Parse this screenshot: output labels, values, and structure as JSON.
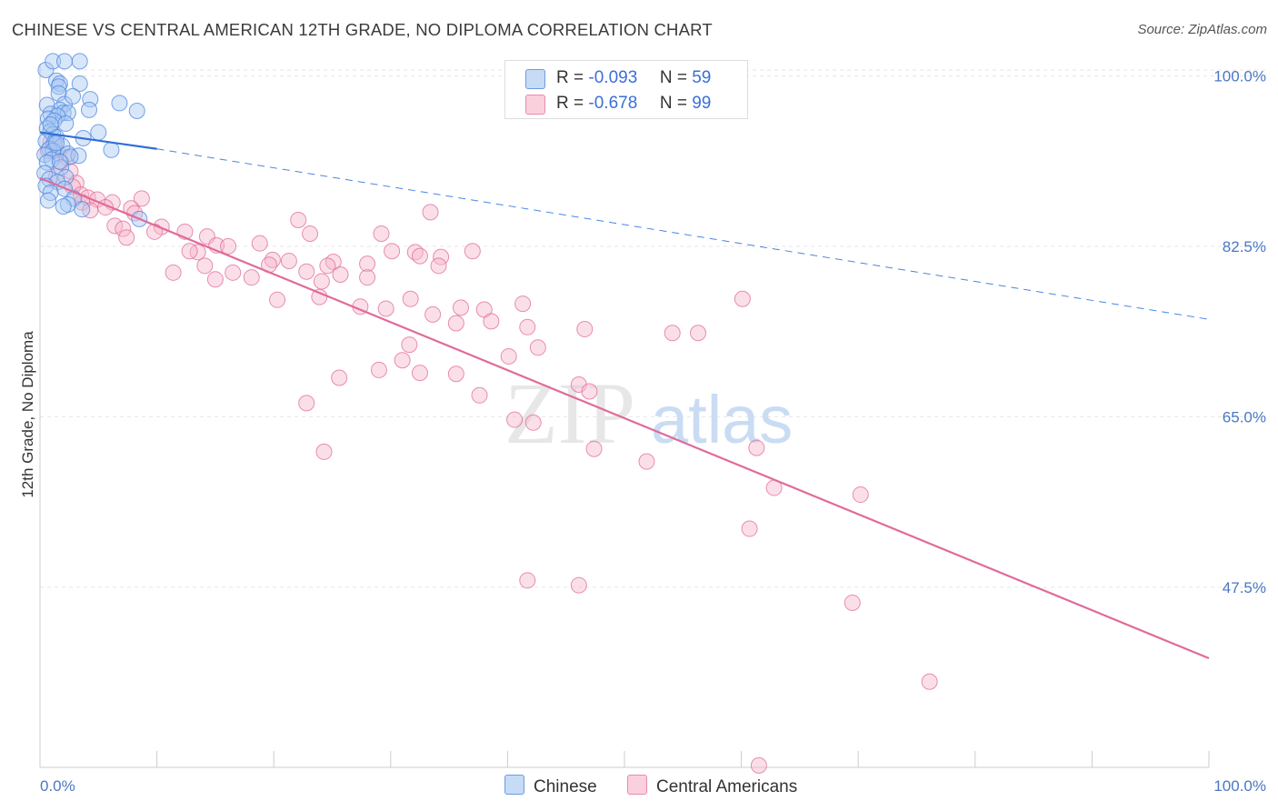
{
  "header": {
    "title": "CHINESE VS CENTRAL AMERICAN 12TH GRADE, NO DIPLOMA CORRELATION CHART",
    "source": "Source: ZipAtlas.com"
  },
  "legend": {
    "items": [
      {
        "r_label": "R =",
        "r_value": "-0.093",
        "n_label": "N =",
        "n_value": "59",
        "color": "#a9c8f2"
      },
      {
        "r_label": "R =",
        "r_value": "-0.678",
        "n_label": "N =",
        "n_value": "99",
        "color": "#f6b9cc"
      }
    ]
  },
  "bottom_legend": {
    "chinese": "Chinese",
    "central": "Central Americans"
  },
  "watermark": {
    "zip": "ZIP",
    "atlas": "atlas"
  },
  "chart_data": {
    "type": "scatter",
    "ylabel": "12th Grade, No Diploma",
    "xlim": [
      0,
      100
    ],
    "ylim": [
      29,
      102
    ],
    "x_tick_labels": [
      "0.0%",
      "100.0%"
    ],
    "y_ticks": [
      {
        "value": 100,
        "label": "100.0%"
      },
      {
        "value": 82.5,
        "label": "82.5%"
      },
      {
        "value": 65,
        "label": "65.0%"
      },
      {
        "value": 47.5,
        "label": "47.5%"
      }
    ],
    "grid": true,
    "series": [
      {
        "name": "Chinese",
        "color": "#4a86e0",
        "fill": "#a9c8f2",
        "trend": {
          "x0": 0,
          "y0": 94.2,
          "x1": 10,
          "y1": 92.5,
          "dash_to": 100,
          "dash_y": 75.0
        },
        "points": [
          [
            0.5,
            100.6
          ],
          [
            1.1,
            101.5
          ],
          [
            2.1,
            101.5
          ],
          [
            3.4,
            101.5
          ],
          [
            1.4,
            99.5
          ],
          [
            1.7,
            99.2
          ],
          [
            1.6,
            98.9
          ],
          [
            3.4,
            99.2
          ],
          [
            1.6,
            98.2
          ],
          [
            2.1,
            97.1
          ],
          [
            4.3,
            97.6
          ],
          [
            1.7,
            96.5
          ],
          [
            2.0,
            96.2
          ],
          [
            2.4,
            96.2
          ],
          [
            4.2,
            96.5
          ],
          [
            6.8,
            97.2
          ],
          [
            0.6,
            97.0
          ],
          [
            0.9,
            96.1
          ],
          [
            1.5,
            95.9
          ],
          [
            0.7,
            95.6
          ],
          [
            1.2,
            95.4
          ],
          [
            2.2,
            95.1
          ],
          [
            0.6,
            94.6
          ],
          [
            0.9,
            94.3
          ],
          [
            5.0,
            94.2
          ],
          [
            1.1,
            94.0
          ],
          [
            1.4,
            93.7
          ],
          [
            3.7,
            93.6
          ],
          [
            0.5,
            93.3
          ],
          [
            1.2,
            93.1
          ],
          [
            1.9,
            92.8
          ],
          [
            0.8,
            92.5
          ],
          [
            1.1,
            92.3
          ],
          [
            2.4,
            92.0
          ],
          [
            0.4,
            91.9
          ],
          [
            3.3,
            91.8
          ],
          [
            2.6,
            91.7
          ],
          [
            1.0,
            91.4
          ],
          [
            0.6,
            91.1
          ],
          [
            1.8,
            90.6
          ],
          [
            0.4,
            90.0
          ],
          [
            2.2,
            89.6
          ],
          [
            0.8,
            89.4
          ],
          [
            1.5,
            89.1
          ],
          [
            0.5,
            88.7
          ],
          [
            2.1,
            88.4
          ],
          [
            0.9,
            88.0
          ],
          [
            2.9,
            87.4
          ],
          [
            0.7,
            87.2
          ],
          [
            2.4,
            86.8
          ],
          [
            3.6,
            86.3
          ],
          [
            2.0,
            86.6
          ],
          [
            8.3,
            96.4
          ],
          [
            1.4,
            93.1
          ],
          [
            0.9,
            95.0
          ],
          [
            2.8,
            97.9
          ],
          [
            1.7,
            91.2
          ],
          [
            6.1,
            92.4
          ],
          [
            8.5,
            85.3
          ]
        ]
      },
      {
        "name": "Central Americans",
        "color": "#e06b9a",
        "fill": "#f6b9cc",
        "trend": {
          "x0": 0,
          "y0": 89.5,
          "x1": 100,
          "y1": 40.2
        },
        "points": [
          [
            0.9,
            93.2
          ],
          [
            1.2,
            92.9
          ],
          [
            0.7,
            92.3
          ],
          [
            1.6,
            92.0
          ],
          [
            2.3,
            91.6
          ],
          [
            1.8,
            91.1
          ],
          [
            2.6,
            90.2
          ],
          [
            1.4,
            89.7
          ],
          [
            3.1,
            89.0
          ],
          [
            2.8,
            88.6
          ],
          [
            3.5,
            87.8
          ],
          [
            4.1,
            87.5
          ],
          [
            4.9,
            87.3
          ],
          [
            6.2,
            87.0
          ],
          [
            8.7,
            87.4
          ],
          [
            3.6,
            87.0
          ],
          [
            5.6,
            86.5
          ],
          [
            7.8,
            86.4
          ],
          [
            8.1,
            85.9
          ],
          [
            4.3,
            86.2
          ],
          [
            10.4,
            84.5
          ],
          [
            12.4,
            84.0
          ],
          [
            14.3,
            83.5
          ],
          [
            15.1,
            82.6
          ],
          [
            16.1,
            82.5
          ],
          [
            9.8,
            84.0
          ],
          [
            6.4,
            84.6
          ],
          [
            7.1,
            84.3
          ],
          [
            7.4,
            83.4
          ],
          [
            13.5,
            81.9
          ],
          [
            12.8,
            82.0
          ],
          [
            18.8,
            82.8
          ],
          [
            19.9,
            81.1
          ],
          [
            21.3,
            81.0
          ],
          [
            22.1,
            85.2
          ],
          [
            23.1,
            83.8
          ],
          [
            25.1,
            80.9
          ],
          [
            24.6,
            80.5
          ],
          [
            22.8,
            79.9
          ],
          [
            29.2,
            83.8
          ],
          [
            28.0,
            80.7
          ],
          [
            30.1,
            82.0
          ],
          [
            32.1,
            81.9
          ],
          [
            32.5,
            81.5
          ],
          [
            33.4,
            86.0
          ],
          [
            34.3,
            81.4
          ],
          [
            34.1,
            80.5
          ],
          [
            37.0,
            82.0
          ],
          [
            14.1,
            80.5
          ],
          [
            16.5,
            79.8
          ],
          [
            19.6,
            80.6
          ],
          [
            11.4,
            79.8
          ],
          [
            15.0,
            79.1
          ],
          [
            18.1,
            79.3
          ],
          [
            24.1,
            78.9
          ],
          [
            25.7,
            79.6
          ],
          [
            28.0,
            79.3
          ],
          [
            23.9,
            77.3
          ],
          [
            20.3,
            77.0
          ],
          [
            31.7,
            77.1
          ],
          [
            27.4,
            76.3
          ],
          [
            29.6,
            76.1
          ],
          [
            36.0,
            76.2
          ],
          [
            38.0,
            76.0
          ],
          [
            41.3,
            76.6
          ],
          [
            33.6,
            75.5
          ],
          [
            35.6,
            74.6
          ],
          [
            38.6,
            74.8
          ],
          [
            31.6,
            72.4
          ],
          [
            31.0,
            70.8
          ],
          [
            29.0,
            69.8
          ],
          [
            32.5,
            69.5
          ],
          [
            35.6,
            69.4
          ],
          [
            25.6,
            69.0
          ],
          [
            22.8,
            66.4
          ],
          [
            24.3,
            61.4
          ],
          [
            37.6,
            67.2
          ],
          [
            40.1,
            71.2
          ],
          [
            41.7,
            74.2
          ],
          [
            42.6,
            72.1
          ],
          [
            46.1,
            68.3
          ],
          [
            40.6,
            64.7
          ],
          [
            42.2,
            64.4
          ],
          [
            47.0,
            67.6
          ],
          [
            46.6,
            74.0
          ],
          [
            41.7,
            48.2
          ],
          [
            46.1,
            47.7
          ],
          [
            47.4,
            61.7
          ],
          [
            51.9,
            60.4
          ],
          [
            54.1,
            73.6
          ],
          [
            56.3,
            73.6
          ],
          [
            60.7,
            53.5
          ],
          [
            60.1,
            77.1
          ],
          [
            62.8,
            57.7
          ],
          [
            70.2,
            57.0
          ],
          [
            61.3,
            61.8
          ],
          [
            61.5,
            29.2
          ],
          [
            69.5,
            45.9
          ],
          [
            76.1,
            37.8
          ]
        ]
      }
    ]
  }
}
